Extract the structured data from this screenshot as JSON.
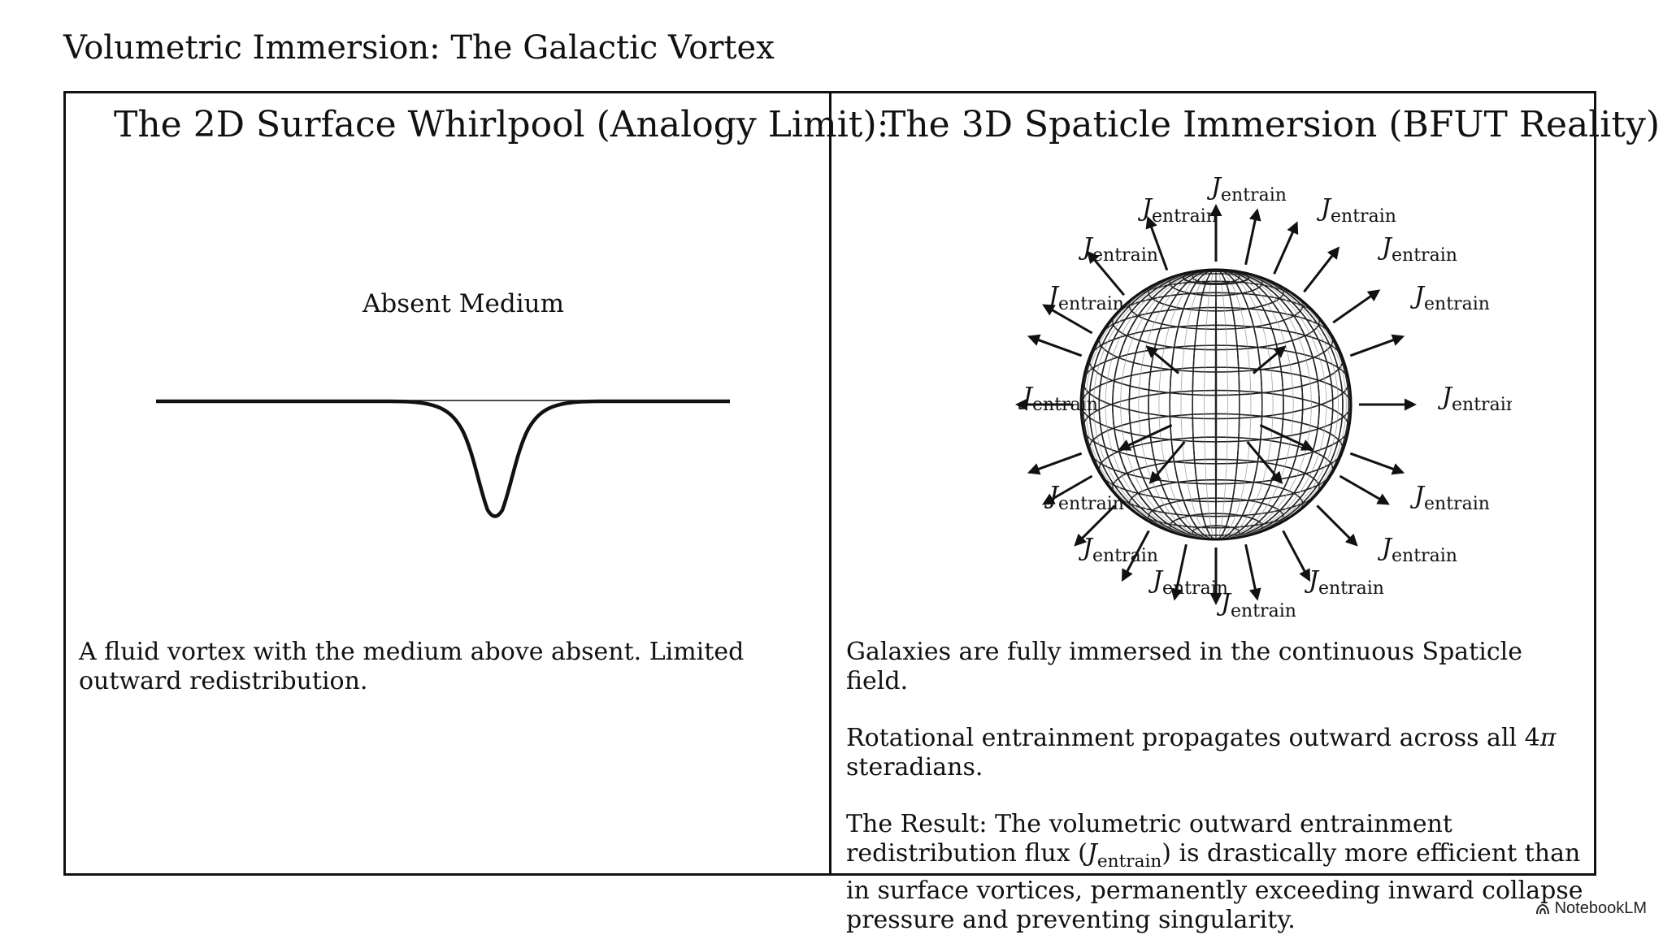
{
  "page": {
    "title": "Volumetric Immersion: The Galactic Vortex"
  },
  "left_panel": {
    "heading": "The 2D Surface Whirlpool (Analogy Limit):",
    "medium_label": "Absent Medium",
    "caption": "A fluid vortex with the medium above absent. Limited outward redistribution."
  },
  "right_panel": {
    "heading": "The 3D Spaticle Immersion (BFUT Reality):",
    "flux_symbol": "J",
    "flux_subscript": "entrain",
    "paragraph_1": "Galaxies are fully immersed in the continuous Spaticle field.",
    "paragraph_2_before": "Rotational entrainment propagates outward across all 4",
    "paragraph_2_pi": "π",
    "paragraph_2_after": " steradians.",
    "result_1": "The Result: The volumetric outward entrainment redistribution flux (",
    "result_2": ") is drastically more efficient than in surface vortices, permanently exceeding inward collapse pressure and preventing singularity."
  },
  "footer": {
    "brand": "NotebookLM",
    "logo_icon": "notebooklm-logo-icon"
  },
  "colors": {
    "ink": "#111111",
    "grid": "#222222",
    "background": "#ffffff"
  }
}
